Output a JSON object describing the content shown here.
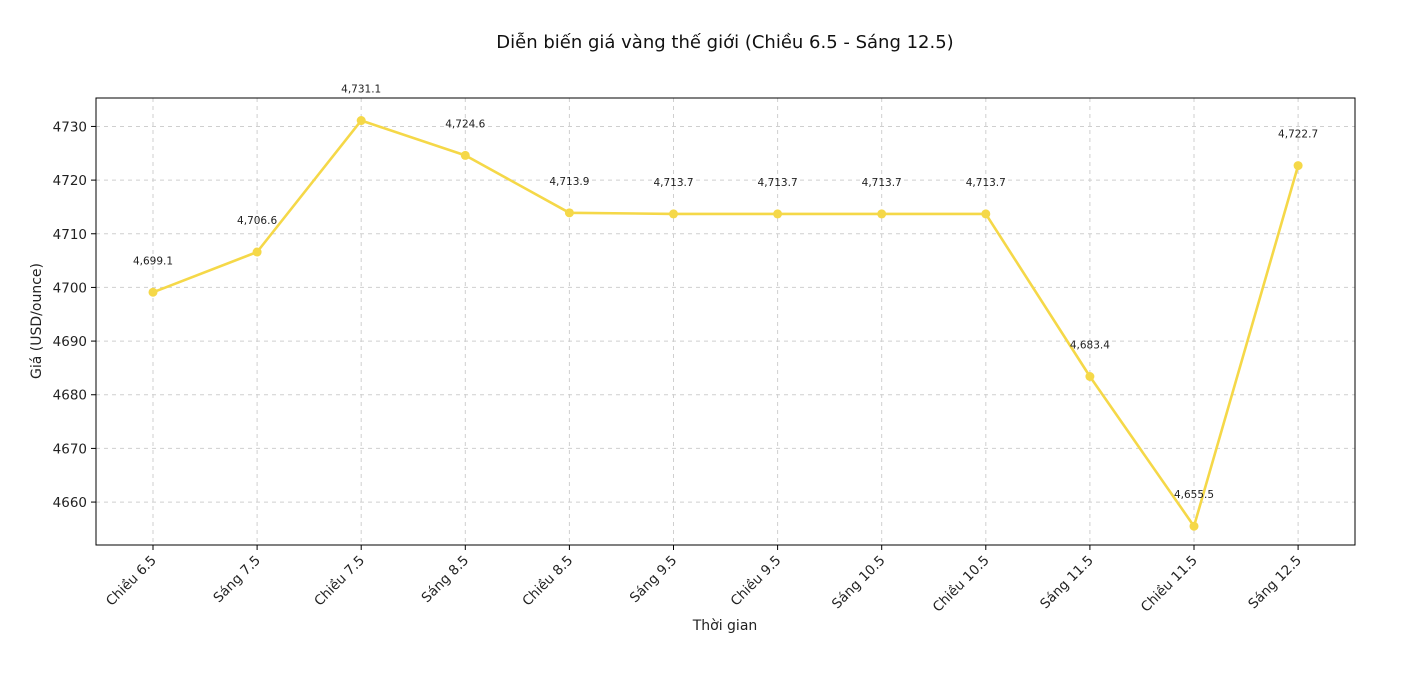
{
  "chart_data": {
    "type": "line",
    "title": "Diễn biến giá vàng thế giới (Chiều 6.5 - Sáng 12.5)",
    "xlabel": "Thời gian",
    "ylabel": "Giá (USD/ounce)",
    "categories": [
      "Chiều 6.5",
      "Sáng 7.5",
      "Chiều 7.5",
      "Sáng 8.5",
      "Chiều 8.5",
      "Sáng 9.5",
      "Chiều 9.5",
      "Sáng 10.5",
      "Chiều 10.5",
      "Sáng 11.5",
      "Chiều 11.5",
      "Sáng 12.5"
    ],
    "values": [
      4699.1,
      4706.6,
      4731.1,
      4724.6,
      4713.9,
      4713.7,
      4713.7,
      4713.7,
      4713.7,
      4683.4,
      4655.5,
      4722.7
    ],
    "data_labels": [
      "4,699.1",
      "4,706.6",
      "4,731.1",
      "4,724.6",
      "4,713.9",
      "4,713.7",
      "4,713.7",
      "4,713.7",
      "4,713.7",
      "4,683.4",
      "4,655.5",
      "4,722.7"
    ],
    "yticks": [
      4660,
      4670,
      4680,
      4690,
      4700,
      4710,
      4720,
      4730
    ],
    "ylim": [
      4652,
      4735.3
    ],
    "grid": true,
    "line_color": "#f5d848"
  }
}
